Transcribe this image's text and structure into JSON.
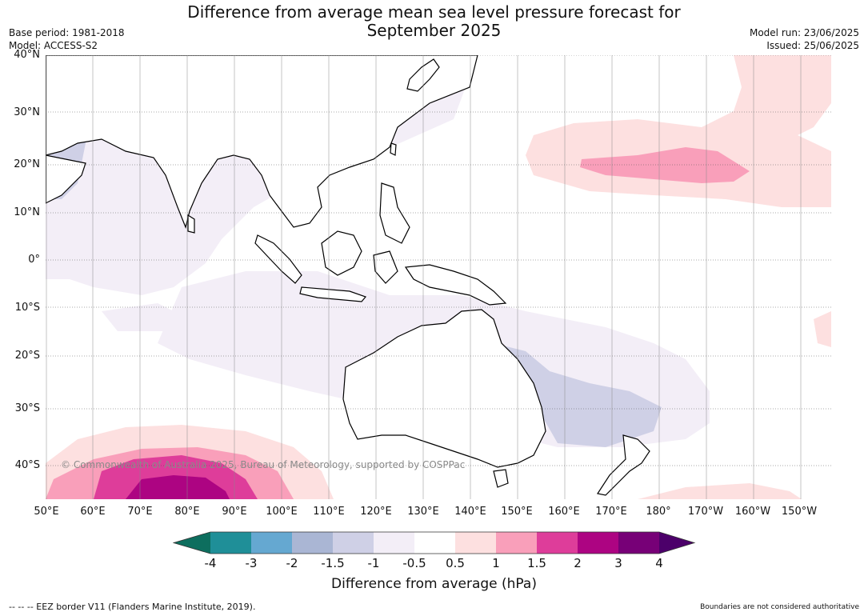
{
  "title_line1": "Difference from average mean sea level pressure forecast for",
  "title_line2": "September 2025",
  "base_period": "Base period: 1981-2018",
  "model": "Model: ACCESS-S2",
  "model_run": "Model run: 23/06/2025",
  "issued": "Issued: 25/06/2025",
  "copyright": "© Commonwealth of Australia 2025, Bureau of Meteorology, supported by COSPPac",
  "colorbar": {
    "label": "Difference from average (hPa)",
    "ticks": [
      "-4",
      "-3",
      "-2",
      "-1.5",
      "-1",
      "-0.5",
      "0.5",
      "1",
      "1.5",
      "2",
      "3",
      "4"
    ],
    "colors": [
      "#0d6e5e",
      "#1f8f98",
      "#65a8d1",
      "#aab6d4",
      "#cfd0e6",
      "#f3eef7",
      "#ffffff",
      "#fde0e0",
      "#f99fba",
      "#de3d9a",
      "#ad0482",
      "#770077",
      "#4c006a"
    ]
  },
  "lat_labels": [
    "40°N",
    "30°N",
    "20°N",
    "10°N",
    "0°",
    "10°S",
    "20°S",
    "30°S",
    "40°S"
  ],
  "lon_labels": [
    "50°E",
    "60°E",
    "70°E",
    "80°E",
    "90°E",
    "100°E",
    "110°E",
    "120°E",
    "130°E",
    "140°E",
    "150°E",
    "160°E",
    "170°E",
    "180°",
    "170°W",
    "160°W",
    "150°W"
  ],
  "footer_left": "-- -- -- EEZ border V11 (Flanders Marine Institute, 2019).",
  "footer_right": "Boundaries are not considered authoritative"
}
